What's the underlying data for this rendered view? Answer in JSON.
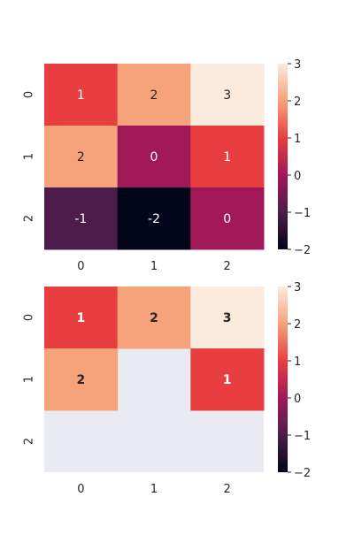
{
  "chart_data": [
    {
      "type": "heatmap",
      "title": "",
      "xlabel": "",
      "ylabel": "",
      "x_categories": [
        "0",
        "1",
        "2"
      ],
      "y_categories": [
        "0",
        "1",
        "2"
      ],
      "values": [
        [
          1,
          2,
          3
        ],
        [
          2,
          0,
          1
        ],
        [
          -1,
          -2,
          0
        ]
      ],
      "annotations": [
        [
          "1",
          "2",
          "3"
        ],
        [
          "2",
          "0",
          "1"
        ],
        [
          "-1",
          "-2",
          "0"
        ]
      ],
      "annotation_weight": "normal",
      "colormap": "rocket",
      "vmin": -2,
      "vmax": 3,
      "colorbar_ticks": [
        "−2",
        "−1",
        "0",
        "1",
        "2",
        "3"
      ],
      "colorbar_values": [
        -2,
        -1,
        0,
        1,
        2,
        3
      ],
      "masked_background": "#eaeaf2"
    },
    {
      "type": "heatmap",
      "title": "",
      "xlabel": "",
      "ylabel": "",
      "x_categories": [
        "0",
        "1",
        "2"
      ],
      "y_categories": [
        "0",
        "1",
        "2"
      ],
      "values": [
        [
          1,
          2,
          3
        ],
        [
          2,
          null,
          1
        ],
        [
          null,
          null,
          null
        ]
      ],
      "annotations": [
        [
          "1",
          "2",
          "3"
        ],
        [
          "2",
          "",
          "1"
        ],
        [
          "",
          "",
          ""
        ]
      ],
      "annotation_weight": "bold",
      "colormap": "rocket",
      "vmin": -2,
      "vmax": 3,
      "colorbar_ticks": [
        "−2",
        "−1",
        "0",
        "1",
        "2",
        "3"
      ],
      "colorbar_values": [
        -2,
        -1,
        0,
        1,
        2,
        3
      ],
      "masked_background": "#eaeaf2"
    }
  ]
}
